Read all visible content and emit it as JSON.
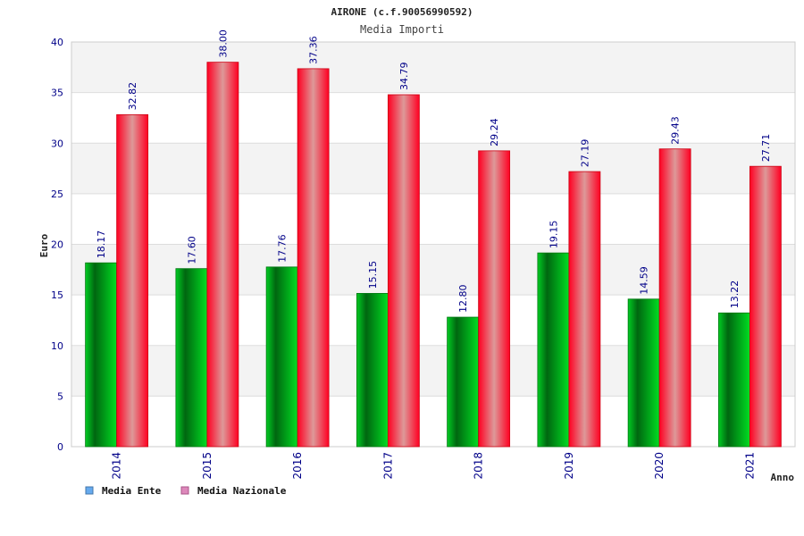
{
  "chart_data": {
    "type": "bar",
    "title": "AIRONE (c.f.90056990592)",
    "subtitle": "Media Importi",
    "xlabel": "Anno",
    "ylabel": "Euro",
    "ylim": [
      0,
      40
    ],
    "yticks": [
      "0",
      "5",
      "10",
      "15",
      "20",
      "25",
      "30",
      "35",
      "40"
    ],
    "categories": [
      "2014",
      "2015",
      "2016",
      "2017",
      "2018",
      "2019",
      "2020",
      "2021"
    ],
    "series": [
      {
        "name": "Media Ente",
        "color": "#66aaee",
        "values": [
          18.17,
          17.6,
          17.76,
          15.15,
          12.8,
          19.15,
          14.59,
          13.22
        ],
        "labels": [
          "18.17",
          "17.60",
          "17.76",
          "15.15",
          "12.80",
          "19.15",
          "14.59",
          "13.22"
        ]
      },
      {
        "name": "Media Nazionale",
        "color": "#dd88bb",
        "values": [
          32.82,
          38.0,
          37.36,
          34.79,
          29.24,
          27.19,
          29.43,
          27.71
        ],
        "labels": [
          "32.82",
          "38.00",
          "37.36",
          "34.79",
          "29.24",
          "27.19",
          "29.43",
          "27.71"
        ]
      }
    ],
    "grid": true,
    "legend_position": "bottom-left"
  }
}
